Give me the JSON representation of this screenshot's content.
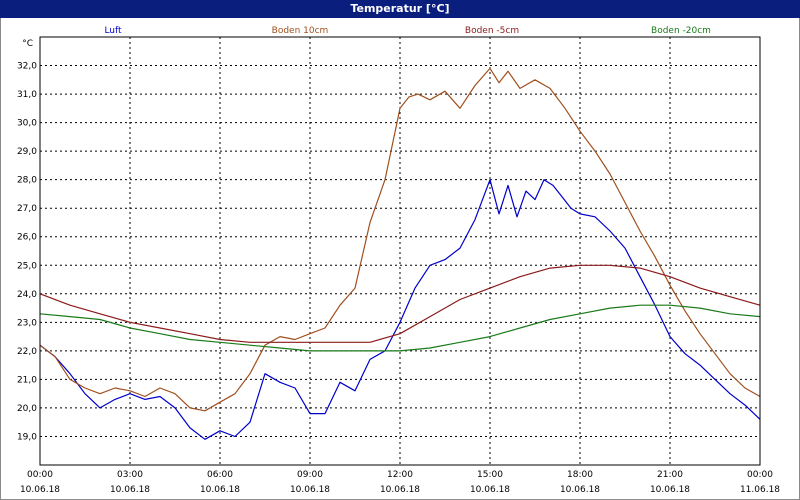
{
  "window_title": "Temperatur [°C]",
  "chart_data": {
    "type": "line",
    "title": "Temperatur [°C]",
    "ylabel": "°C",
    "xlabel": "",
    "ylim": [
      18.0,
      33.0
    ],
    "xlim": [
      0,
      24
    ],
    "grid": true,
    "legend_position": "top",
    "y_ticks": [
      "19,0",
      "20,0",
      "21,0",
      "22,0",
      "23,0",
      "24,0",
      "25,0",
      "26,0",
      "27,0",
      "28,0",
      "29,0",
      "30,0",
      "31,0",
      "32,0"
    ],
    "x_ticks": [
      {
        "time": "00:00",
        "date": "10.06.18"
      },
      {
        "time": "03:00",
        "date": "10.06.18"
      },
      {
        "time": "06:00",
        "date": "10.06.18"
      },
      {
        "time": "09:00",
        "date": "10.06.18"
      },
      {
        "time": "12:00",
        "date": "10.06.18"
      },
      {
        "time": "15:00",
        "date": "10.06.18"
      },
      {
        "time": "18:00",
        "date": "10.06.18"
      },
      {
        "time": "21:00",
        "date": "10.06.18"
      },
      {
        "time": "00:00",
        "date": "11.06.18"
      }
    ],
    "series": [
      {
        "name": "Luft",
        "color": "#0000cc",
        "x": [
          0,
          0.5,
          1,
          1.5,
          2,
          2.5,
          3,
          3.5,
          4,
          4.5,
          5,
          5.5,
          6,
          6.5,
          7,
          7.5,
          8,
          8.5,
          9,
          9.5,
          10,
          10.5,
          11,
          11.5,
          12,
          12.5,
          13,
          13.5,
          14,
          14.5,
          15,
          15.3,
          15.6,
          15.9,
          16.2,
          16.5,
          16.8,
          17.1,
          17.4,
          17.7,
          18,
          18.5,
          19,
          19.5,
          20,
          20.5,
          21,
          21.5,
          22,
          22.5,
          23,
          23.5,
          24
        ],
        "values": [
          22.2,
          21.8,
          21.2,
          20.5,
          20.0,
          20.3,
          20.5,
          20.3,
          20.4,
          20.0,
          19.3,
          18.9,
          19.2,
          19.0,
          19.5,
          21.2,
          20.9,
          20.7,
          19.8,
          19.8,
          20.9,
          20.6,
          21.7,
          22.0,
          23.0,
          24.2,
          25.0,
          25.2,
          25.6,
          26.6,
          28.0,
          26.8,
          27.8,
          26.7,
          27.6,
          27.3,
          28.0,
          27.8,
          27.4,
          27.0,
          26.8,
          26.7,
          26.2,
          25.6,
          24.6,
          23.6,
          22.5,
          21.9,
          21.5,
          21.0,
          20.5,
          20.1,
          19.6
        ]
      },
      {
        "name": "Boden 10cm",
        "color": "#a0501e",
        "x": [
          0,
          0.5,
          1,
          1.5,
          2,
          2.5,
          3,
          3.5,
          4,
          4.5,
          5,
          5.5,
          6,
          6.5,
          7,
          7.5,
          8,
          8.5,
          9,
          9.5,
          10,
          10.5,
          11,
          11.5,
          12,
          12.3,
          12.6,
          13,
          13.5,
          14,
          14.5,
          15,
          15.3,
          15.6,
          16,
          16.5,
          17,
          17.5,
          18,
          18.5,
          19,
          19.5,
          20,
          20.5,
          21,
          21.5,
          22,
          22.5,
          23,
          23.5,
          24
        ],
        "values": [
          22.2,
          21.8,
          21.0,
          20.7,
          20.5,
          20.7,
          20.6,
          20.4,
          20.7,
          20.5,
          20.0,
          19.9,
          20.2,
          20.5,
          21.2,
          22.2,
          22.5,
          22.4,
          22.6,
          22.8,
          23.6,
          24.2,
          26.5,
          28.0,
          30.5,
          30.9,
          31.0,
          30.8,
          31.1,
          30.5,
          31.3,
          31.9,
          31.4,
          31.8,
          31.2,
          31.5,
          31.2,
          30.5,
          29.7,
          29.0,
          28.2,
          27.2,
          26.2,
          25.3,
          24.3,
          23.4,
          22.6,
          21.9,
          21.2,
          20.7,
          20.4
        ]
      },
      {
        "name": "Boden -5cm",
        "color": "#8b1a1a",
        "x": [
          0,
          1,
          2,
          3,
          4,
          5,
          6,
          7,
          8,
          9,
          10,
          11,
          12,
          13,
          14,
          15,
          16,
          17,
          18,
          19,
          20,
          21,
          22,
          23,
          24
        ],
        "values": [
          24.0,
          23.6,
          23.3,
          23.0,
          22.8,
          22.6,
          22.4,
          22.3,
          22.3,
          22.3,
          22.3,
          22.3,
          22.6,
          23.2,
          23.8,
          24.2,
          24.6,
          24.9,
          25.0,
          25.0,
          24.9,
          24.6,
          24.2,
          23.9,
          23.6
        ]
      },
      {
        "name": "Boden -20cm",
        "color": "#1a7a1a",
        "x": [
          0,
          1,
          2,
          3,
          4,
          5,
          6,
          7,
          8,
          9,
          10,
          11,
          12,
          13,
          14,
          15,
          16,
          17,
          18,
          19,
          20,
          21,
          22,
          23,
          24
        ],
        "values": [
          23.3,
          23.2,
          23.1,
          22.8,
          22.6,
          22.4,
          22.3,
          22.2,
          22.1,
          22.0,
          22.0,
          22.0,
          22.0,
          22.1,
          22.3,
          22.5,
          22.8,
          23.1,
          23.3,
          23.5,
          23.6,
          23.6,
          23.5,
          23.3,
          23.2
        ]
      }
    ]
  }
}
